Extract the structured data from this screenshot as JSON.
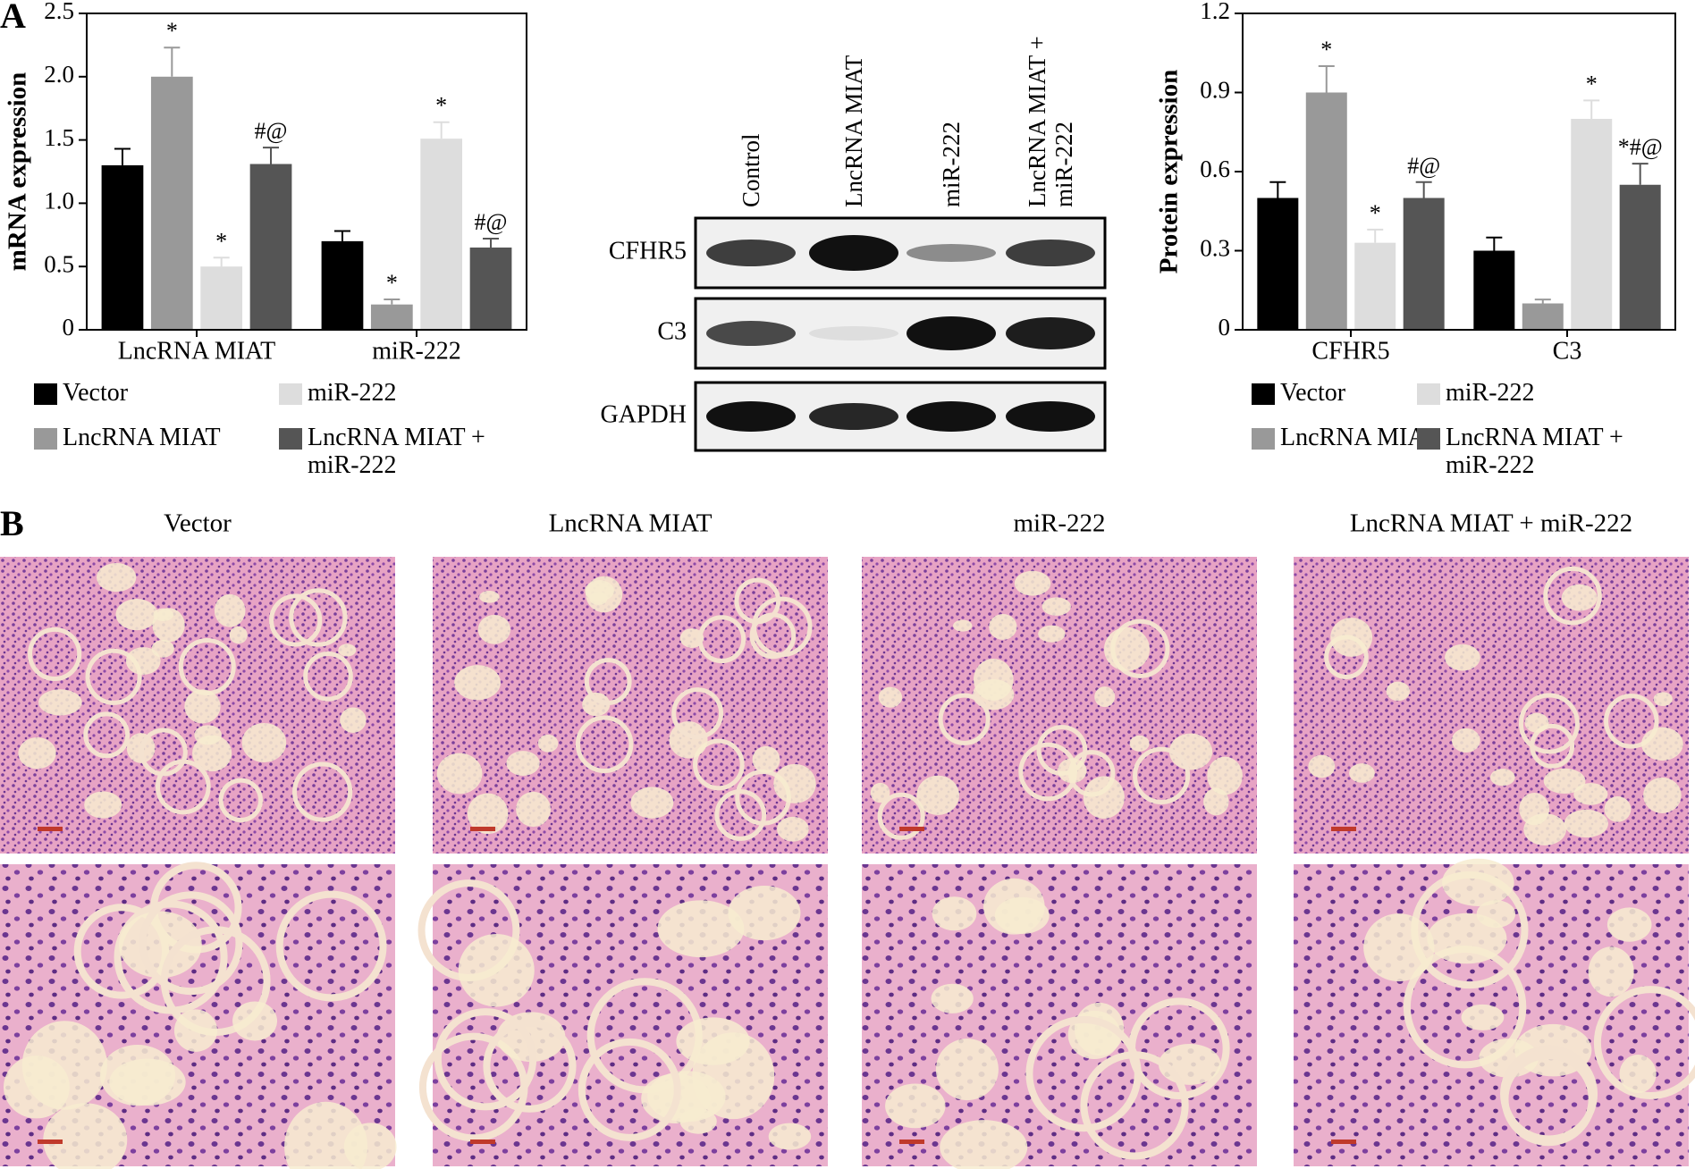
{
  "panel_a_label": "A",
  "chart_data": [
    {
      "type": "bar",
      "ylabel": "mRNA expression",
      "categories": [
        "LncRNA MIAT",
        "miR-222"
      ],
      "ylim": [
        0,
        2.5
      ],
      "yticks": [
        0,
        0.5,
        {
          "value": 1,
          "label": "1.0"
        },
        1.5,
        {
          "value": 2,
          "label": "2.0"
        },
        2.5
      ],
      "series": [
        {
          "name": "Vector",
          "color": "#000000",
          "values": [
            1.3,
            0.7
          ],
          "errors": [
            0.13,
            0.08
          ],
          "annotations": [
            null,
            null
          ]
        },
        {
          "name": "LncRNA MIAT",
          "color": "#999999",
          "values": [
            2.0,
            0.2
          ],
          "errors": [
            0.23,
            0.04
          ],
          "annotations": [
            "*",
            "*"
          ]
        },
        {
          "name": "miR-222",
          "color": "#dddddd",
          "values": [
            0.5,
            1.51
          ],
          "errors": [
            0.07,
            0.13
          ],
          "annotations": [
            "*",
            "*"
          ]
        },
        {
          "name": "LncRNA MIAT + miR-222",
          "color": "#555555",
          "values": [
            1.31,
            0.65
          ],
          "errors": [
            0.13,
            0.07
          ],
          "annotations": [
            "#@",
            "#@"
          ]
        }
      ]
    },
    {
      "type": "bar",
      "ylabel": "Protein expression",
      "categories": [
        "CFHR5",
        "C3"
      ],
      "ylim": [
        0,
        1.2
      ],
      "yticks": [
        0,
        0.3,
        0.6,
        0.9,
        1.2
      ],
      "series": [
        {
          "name": "Vector",
          "color": "#000000",
          "values": [
            0.5,
            0.3
          ],
          "errors": [
            0.06,
            0.05
          ],
          "annotations": [
            null,
            null
          ]
        },
        {
          "name": "LncRNA MIAT",
          "color": "#999999",
          "values": [
            0.9,
            0.1
          ],
          "errors": [
            0.1,
            0.015
          ],
          "annotations": [
            "*",
            null
          ]
        },
        {
          "name": "miR-222",
          "color": "#dddddd",
          "values": [
            0.33,
            0.8
          ],
          "errors": [
            0.05,
            0.07
          ],
          "annotations": [
            "*",
            "*"
          ]
        },
        {
          "name": "LncRNA MIAT + miR-222",
          "color": "#555555",
          "values": [
            0.5,
            0.55
          ],
          "errors": [
            0.06,
            0.08
          ],
          "annotations": [
            "#@",
            "*#@"
          ]
        }
      ]
    }
  ],
  "blot": {
    "lanes": [
      "Control",
      "LncRNA MIAT",
      "miR-222",
      "LncRNA MIAT + miR-222"
    ],
    "bands": [
      "CFHR5",
      "C3",
      "GAPDH"
    ]
  },
  "histology": {
    "label": "B",
    "columns": [
      "Vector",
      "LncRNA MIAT",
      "miR-222",
      "LncRNA MIAT + miR-222"
    ]
  }
}
